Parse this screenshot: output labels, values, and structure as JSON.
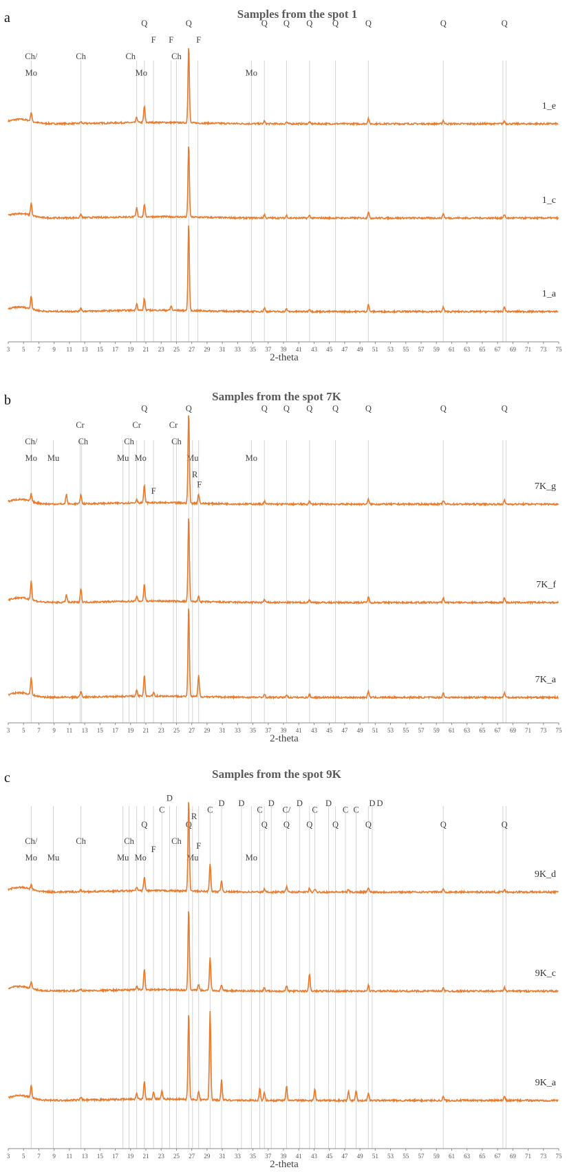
{
  "chart_data": [
    {
      "type": "line",
      "panel": "a",
      "title": "Samples from the spot 1",
      "xlabel": "2-theta",
      "xlim": [
        3,
        75
      ],
      "x_ticks": [
        3,
        5,
        7,
        9,
        11,
        13,
        15,
        17,
        19,
        21,
        23,
        25,
        27,
        29,
        31,
        33,
        35,
        37,
        39,
        41,
        43,
        45,
        47,
        49,
        51,
        53,
        55,
        57,
        59,
        61,
        63,
        65,
        67,
        69,
        71,
        73,
        75
      ],
      "reference_lines": [
        6.0,
        12.5,
        19.8,
        20.8,
        22.0,
        24.3,
        25.0,
        26.6,
        27.8,
        34.8,
        36.5,
        39.4,
        42.4,
        45.8,
        50.1,
        59.9,
        67.7,
        68.1
      ],
      "mineral_labels": [
        {
          "text": "Ch/",
          "x": 6.0,
          "row": 1
        },
        {
          "text": "Mo",
          "x": 6.0,
          "row": 2
        },
        {
          "text": "Ch",
          "x": 12.5,
          "row": 1
        },
        {
          "text": "Ch",
          "x": 19.0,
          "row": 1
        },
        {
          "text": "Mo",
          "x": 20.4,
          "row": 2
        },
        {
          "text": "Q",
          "x": 20.8,
          "row": -1
        },
        {
          "text": "F",
          "x": 22.0,
          "row": 0
        },
        {
          "text": "F",
          "x": 24.3,
          "row": 0
        },
        {
          "text": "Ch",
          "x": 25.0,
          "row": 1
        },
        {
          "text": "Q",
          "x": 26.6,
          "row": -1
        },
        {
          "text": "F",
          "x": 27.9,
          "row": 0
        },
        {
          "text": "Mo",
          "x": 34.8,
          "row": 2
        },
        {
          "text": "Q",
          "x": 36.5,
          "row": -1
        },
        {
          "text": "Q",
          "x": 39.4,
          "row": -1
        },
        {
          "text": "Q",
          "x": 42.4,
          "row": -1
        },
        {
          "text": "Q",
          "x": 45.8,
          "row": -1
        },
        {
          "text": "Q",
          "x": 50.1,
          "row": -1
        },
        {
          "text": "Q",
          "x": 59.9,
          "row": -1
        },
        {
          "text": "Q",
          "x": 67.9,
          "row": -1
        }
      ],
      "series": [
        {
          "name": "1_e",
          "peaks": [
            [
              6.0,
              0.1
            ],
            [
              12.5,
              0.02
            ],
            [
              19.8,
              0.06
            ],
            [
              20.8,
              0.18
            ],
            [
              26.6,
              0.85
            ],
            [
              36.5,
              0.03
            ],
            [
              39.4,
              0.02
            ],
            [
              42.4,
              0.02
            ],
            [
              50.1,
              0.06
            ],
            [
              59.9,
              0.04
            ],
            [
              67.9,
              0.03
            ]
          ]
        },
        {
          "name": "1_c",
          "peaks": [
            [
              6.0,
              0.14
            ],
            [
              12.5,
              0.04
            ],
            [
              19.8,
              0.1
            ],
            [
              20.8,
              0.14
            ],
            [
              26.6,
              0.8
            ],
            [
              36.5,
              0.04
            ],
            [
              39.4,
              0.03
            ],
            [
              42.4,
              0.03
            ],
            [
              50.1,
              0.07
            ],
            [
              59.9,
              0.05
            ],
            [
              67.9,
              0.04
            ]
          ]
        },
        {
          "name": "1_a",
          "peaks": [
            [
              6.0,
              0.15
            ],
            [
              12.5,
              0.04
            ],
            [
              19.8,
              0.08
            ],
            [
              20.8,
              0.13
            ],
            [
              24.3,
              0.05
            ],
            [
              26.6,
              0.95
            ],
            [
              36.5,
              0.04
            ],
            [
              39.4,
              0.03
            ],
            [
              42.4,
              0.03
            ],
            [
              50.1,
              0.08
            ],
            [
              59.9,
              0.05
            ],
            [
              67.9,
              0.05
            ]
          ]
        }
      ]
    },
    {
      "type": "line",
      "panel": "b",
      "title": "Samples from the spot 7K",
      "xlabel": "2-theta",
      "xlim": [
        3,
        75
      ],
      "x_ticks": [
        3,
        5,
        7,
        9,
        11,
        13,
        15,
        17,
        19,
        21,
        23,
        25,
        27,
        29,
        31,
        33,
        35,
        37,
        39,
        41,
        43,
        45,
        47,
        49,
        51,
        53,
        55,
        57,
        59,
        61,
        63,
        65,
        67,
        69,
        71,
        73,
        75
      ],
      "reference_lines": [
        6.0,
        8.9,
        12.4,
        12.6,
        18.0,
        18.8,
        19.8,
        20.8,
        22.0,
        24.6,
        25.0,
        26.6,
        27.1,
        27.9,
        34.8,
        36.5,
        39.4,
        42.4,
        45.8,
        50.1,
        59.9,
        67.7,
        68.1
      ],
      "mineral_labels": [
        {
          "text": "Ch/",
          "x": 6.0,
          "row": 1
        },
        {
          "text": "Mo",
          "x": 6.0,
          "row": 2
        },
        {
          "text": "Mu",
          "x": 8.9,
          "row": 2
        },
        {
          "text": "Cr",
          "x": 12.4,
          "row": 0
        },
        {
          "text": "Ch",
          "x": 12.8,
          "row": 1
        },
        {
          "text": "Ch",
          "x": 18.8,
          "row": 1
        },
        {
          "text": "Mu",
          "x": 18.0,
          "row": 2
        },
        {
          "text": "Cr",
          "x": 19.8,
          "row": 0
        },
        {
          "text": "Mo",
          "x": 20.3,
          "row": 2
        },
        {
          "text": "Q",
          "x": 20.8,
          "row": -1
        },
        {
          "text": "F",
          "x": 22.0,
          "row": 4
        },
        {
          "text": "Cr",
          "x": 24.6,
          "row": 0
        },
        {
          "text": "Ch",
          "x": 25.0,
          "row": 1
        },
        {
          "text": "Q",
          "x": 26.6,
          "row": -1
        },
        {
          "text": "Mu",
          "x": 27.1,
          "row": 2
        },
        {
          "text": "R",
          "x": 27.4,
          "row": 3
        },
        {
          "text": "F",
          "x": 28.0,
          "row": 3.6
        },
        {
          "text": "Mo",
          "x": 34.8,
          "row": 2
        },
        {
          "text": "Q",
          "x": 36.5,
          "row": -1
        },
        {
          "text": "Q",
          "x": 39.4,
          "row": -1
        },
        {
          "text": "Q",
          "x": 42.4,
          "row": -1
        },
        {
          "text": "Q",
          "x": 45.8,
          "row": -1
        },
        {
          "text": "Q",
          "x": 50.1,
          "row": -1
        },
        {
          "text": "Q",
          "x": 59.9,
          "row": -1
        },
        {
          "text": "Q",
          "x": 67.9,
          "row": -1
        }
      ],
      "series": [
        {
          "name": "7K_g",
          "peaks": [
            [
              6.0,
              0.08
            ],
            [
              10.6,
              0.1
            ],
            [
              12.5,
              0.1
            ],
            [
              19.8,
              0.04
            ],
            [
              20.8,
              0.18
            ],
            [
              26.6,
              0.95
            ],
            [
              27.9,
              0.1
            ],
            [
              36.5,
              0.03
            ],
            [
              42.4,
              0.03
            ],
            [
              50.1,
              0.05
            ],
            [
              59.9,
              0.04
            ],
            [
              67.9,
              0.04
            ]
          ]
        },
        {
          "name": "7K_f",
          "peaks": [
            [
              6.0,
              0.2
            ],
            [
              10.6,
              0.08
            ],
            [
              12.5,
              0.14
            ],
            [
              19.8,
              0.05
            ],
            [
              20.8,
              0.18
            ],
            [
              26.6,
              0.9
            ],
            [
              27.9,
              0.06
            ],
            [
              36.5,
              0.03
            ],
            [
              42.4,
              0.03
            ],
            [
              50.1,
              0.06
            ],
            [
              59.9,
              0.05
            ],
            [
              67.9,
              0.05
            ]
          ]
        },
        {
          "name": "7K_a",
          "peaks": [
            [
              6.0,
              0.18
            ],
            [
              12.5,
              0.06
            ],
            [
              19.8,
              0.06
            ],
            [
              20.8,
              0.22
            ],
            [
              22.0,
              0.04
            ],
            [
              26.6,
              0.95
            ],
            [
              27.9,
              0.22
            ],
            [
              36.5,
              0.04
            ],
            [
              39.4,
              0.03
            ],
            [
              42.4,
              0.03
            ],
            [
              50.1,
              0.07
            ],
            [
              59.9,
              0.05
            ],
            [
              67.9,
              0.05
            ]
          ]
        }
      ]
    },
    {
      "type": "line",
      "panel": "c",
      "title": "Samples from the spot 9K",
      "xlabel": "2-theta",
      "xlim": [
        3,
        75
      ],
      "x_ticks": [
        3,
        5,
        7,
        9,
        11,
        13,
        15,
        17,
        19,
        21,
        23,
        25,
        27,
        29,
        31,
        33,
        35,
        37,
        39,
        41,
        43,
        45,
        47,
        49,
        51,
        53,
        55,
        57,
        59,
        61,
        63,
        65,
        67,
        69,
        71,
        73,
        75
      ],
      "reference_lines": [
        6.0,
        8.9,
        12.5,
        18.0,
        18.8,
        19.8,
        20.8,
        22.0,
        23.1,
        24.1,
        25.0,
        26.6,
        27.1,
        27.9,
        29.4,
        30.9,
        33.5,
        34.8,
        35.9,
        36.5,
        37.4,
        39.4,
        41.1,
        42.4,
        43.1,
        44.9,
        45.8,
        47.1,
        48.5,
        50.1,
        50.6,
        59.9,
        67.7,
        68.1
      ],
      "mineral_labels": [
        {
          "text": "Ch/",
          "x": 6.0,
          "row": 1
        },
        {
          "text": "Mo",
          "x": 6.0,
          "row": 2
        },
        {
          "text": "Mu",
          "x": 8.9,
          "row": 2
        },
        {
          "text": "Ch",
          "x": 12.5,
          "row": 1
        },
        {
          "text": "Ch",
          "x": 18.8,
          "row": 1
        },
        {
          "text": "Mu",
          "x": 18.0,
          "row": 2
        },
        {
          "text": "Mo",
          "x": 20.3,
          "row": 2
        },
        {
          "text": "Q",
          "x": 20.8,
          "row": 0
        },
        {
          "text": "F",
          "x": 22.0,
          "row": 1.5
        },
        {
          "text": "C",
          "x": 23.1,
          "row": -0.9
        },
        {
          "text": "D",
          "x": 24.1,
          "row": -1.6
        },
        {
          "text": "Ch",
          "x": 25.0,
          "row": 1
        },
        {
          "text": "Q",
          "x": 26.6,
          "row": 0
        },
        {
          "text": "R",
          "x": 27.3,
          "row": -0.5
        },
        {
          "text": "F",
          "x": 27.9,
          "row": 1.3
        },
        {
          "text": "Mu",
          "x": 27.1,
          "row": 2
        },
        {
          "text": "C",
          "x": 29.4,
          "row": -0.9
        },
        {
          "text": "D",
          "x": 30.9,
          "row": -1.3
        },
        {
          "text": "D",
          "x": 33.5,
          "row": -1.3
        },
        {
          "text": "Mo",
          "x": 34.8,
          "row": 2
        },
        {
          "text": "C",
          "x": 35.9,
          "row": -0.9
        },
        {
          "text": "Q",
          "x": 36.5,
          "row": 0
        },
        {
          "text": "D",
          "x": 37.4,
          "row": -1.3
        },
        {
          "text": "C/",
          "x": 39.4,
          "row": -0.9
        },
        {
          "text": "Q",
          "x": 39.4,
          "row": 0
        },
        {
          "text": "D",
          "x": 41.1,
          "row": -1.3
        },
        {
          "text": "Q",
          "x": 42.4,
          "row": 0
        },
        {
          "text": "C",
          "x": 43.1,
          "row": -0.9
        },
        {
          "text": "D",
          "x": 44.9,
          "row": -1.3
        },
        {
          "text": "Q",
          "x": 45.8,
          "row": 0
        },
        {
          "text": "C",
          "x": 47.1,
          "row": -0.9
        },
        {
          "text": "C",
          "x": 48.5,
          "row": -0.9
        },
        {
          "text": "D",
          "x": 50.6,
          "row": -1.3
        },
        {
          "text": "Q",
          "x": 50.1,
          "row": 0
        },
        {
          "text": "D",
          "x": 51.6,
          "row": -1.3
        },
        {
          "text": "Q",
          "x": 59.9,
          "row": 0
        },
        {
          "text": "Q",
          "x": 67.9,
          "row": 0
        }
      ],
      "series": [
        {
          "name": "9K_d",
          "peaks": [
            [
              6.0,
              0.05
            ],
            [
              12.5,
              0.02
            ],
            [
              19.8,
              0.04
            ],
            [
              20.8,
              0.15
            ],
            [
              26.6,
              0.95
            ],
            [
              29.4,
              0.3
            ],
            [
              30.9,
              0.12
            ],
            [
              36.5,
              0.03
            ],
            [
              39.4,
              0.06
            ],
            [
              42.4,
              0.04
            ],
            [
              43.1,
              0.03
            ],
            [
              47.5,
              0.03
            ],
            [
              50.1,
              0.05
            ],
            [
              59.9,
              0.03
            ],
            [
              67.9,
              0.03
            ]
          ]
        },
        {
          "name": "9K_c",
          "peaks": [
            [
              6.0,
              0.07
            ],
            [
              12.5,
              0.02
            ],
            [
              19.8,
              0.04
            ],
            [
              20.8,
              0.22
            ],
            [
              26.6,
              0.85
            ],
            [
              27.9,
              0.06
            ],
            [
              29.4,
              0.35
            ],
            [
              30.9,
              0.06
            ],
            [
              36.5,
              0.04
            ],
            [
              39.4,
              0.06
            ],
            [
              42.4,
              0.18
            ],
            [
              50.1,
              0.06
            ],
            [
              59.9,
              0.04
            ],
            [
              67.9,
              0.04
            ]
          ]
        },
        {
          "name": "9K_a",
          "peaks": [
            [
              6.0,
              0.12
            ],
            [
              12.5,
              0.03
            ],
            [
              19.8,
              0.06
            ],
            [
              20.8,
              0.18
            ],
            [
              22.0,
              0.07
            ],
            [
              23.1,
              0.08
            ],
            [
              26.6,
              0.88
            ],
            [
              27.9,
              0.08
            ],
            [
              29.4,
              0.9
            ],
            [
              30.9,
              0.2
            ],
            [
              35.9,
              0.12
            ],
            [
              36.5,
              0.08
            ],
            [
              39.4,
              0.14
            ],
            [
              43.1,
              0.12
            ],
            [
              47.5,
              0.1
            ],
            [
              48.5,
              0.1
            ],
            [
              50.1,
              0.08
            ],
            [
              59.9,
              0.04
            ],
            [
              67.9,
              0.04
            ]
          ]
        }
      ]
    }
  ]
}
